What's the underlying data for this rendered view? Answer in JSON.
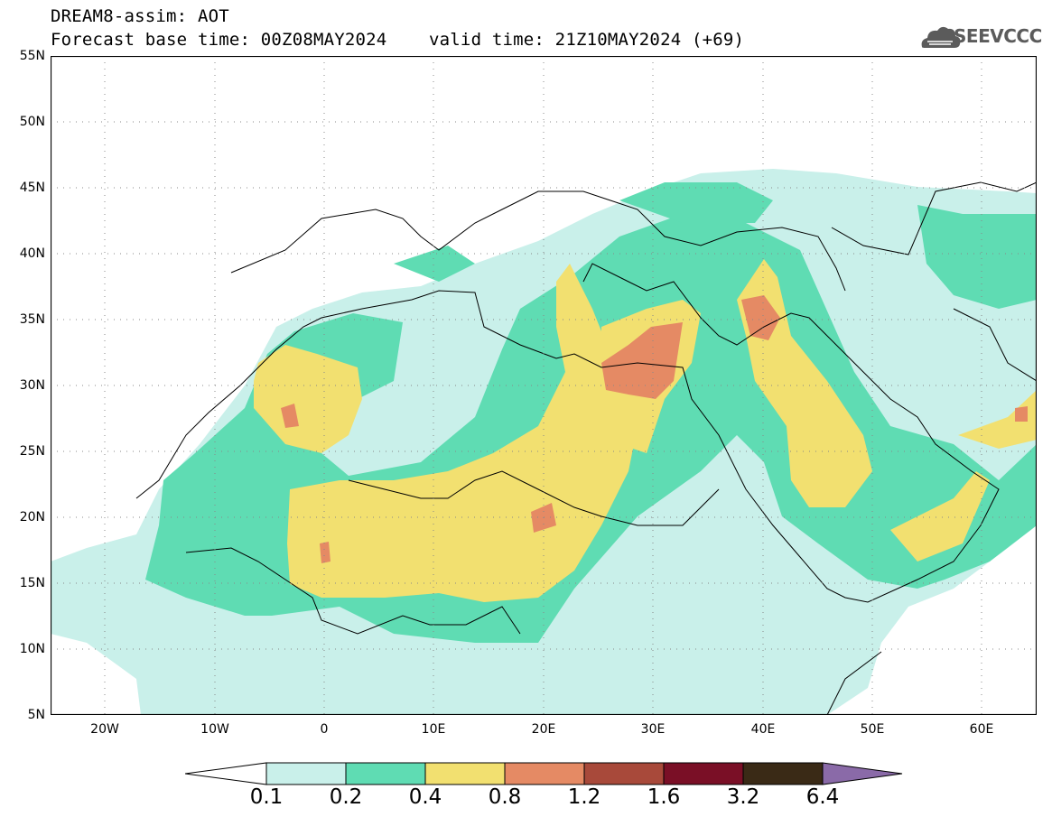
{
  "header": {
    "line1": "DREAM8-assim: AOT",
    "line2_base": "Forecast base time: 00Z08MAY2024",
    "line2_valid": "valid time: 21Z10MAY2024 (+69)"
  },
  "logo": {
    "text": "SEEVCCC",
    "icon": "cloud-logo-icon"
  },
  "map": {
    "lon_range": [
      -25,
      65
    ],
    "lat_range": [
      5,
      55
    ],
    "lat_labels": [
      "55N",
      "50N",
      "45N",
      "40N",
      "35N",
      "30N",
      "25N",
      "20N",
      "15N",
      "10N",
      "5N"
    ],
    "lon_labels": [
      "20W",
      "10W",
      "0",
      "10E",
      "20E",
      "30E",
      "40E",
      "50E",
      "60E"
    ],
    "gridlines": "dotted"
  },
  "colorbar": {
    "labels": [
      "0.1",
      "0.2",
      "0.4",
      "0.8",
      "1.2",
      "1.6",
      "3.2",
      "6.4"
    ],
    "colors": {
      "below": "#ffffff",
      "c1": "#c9f0ea",
      "c2": "#5fdcb3",
      "c3": "#f2e070",
      "c4": "#e58a64",
      "c5": "#a8493a",
      "c6": "#7a0f26",
      "c7": "#3a2a16",
      "above": "#8a6aa8"
    }
  }
}
